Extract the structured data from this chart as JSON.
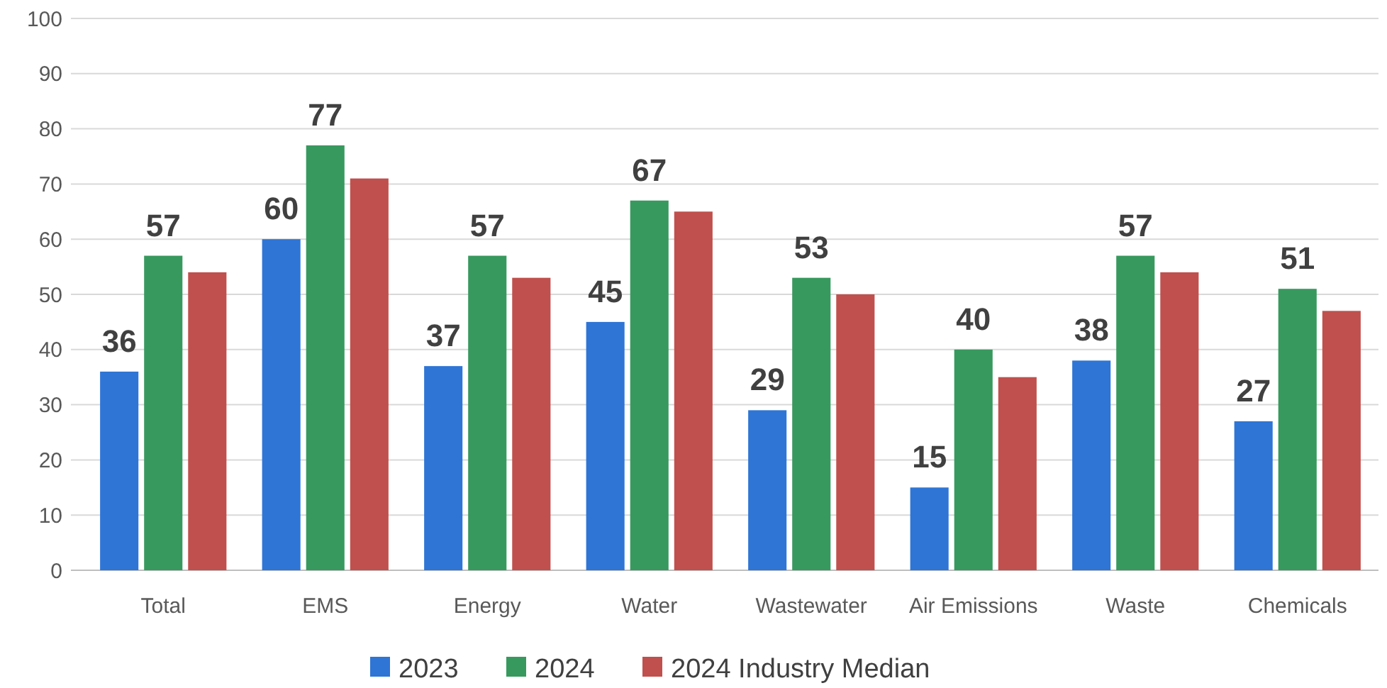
{
  "chart_data": {
    "type": "bar",
    "categories": [
      "Total",
      "EMS",
      "Energy",
      "Water",
      "Wastewater",
      "Air Emissions",
      "Waste",
      "Chemicals"
    ],
    "series": [
      {
        "name": "2023",
        "color": "#2e75d6",
        "values": [
          36,
          60,
          37,
          45,
          29,
          15,
          38,
          27
        ],
        "value_labels": [
          "36",
          "60",
          "37",
          "45",
          "29",
          "15",
          "38",
          "27"
        ]
      },
      {
        "name": "2024",
        "color": "#37995e",
        "values": [
          57,
          77,
          57,
          67,
          53,
          40,
          57,
          51
        ],
        "value_labels": [
          "57",
          "77",
          "57",
          "67",
          "53",
          "40",
          "57",
          "51"
        ]
      },
      {
        "name": "2024 Industry Median",
        "color": "#c0504d",
        "values": [
          54,
          71,
          53,
          65,
          50,
          35,
          54,
          47
        ]
      }
    ],
    "ylim": [
      0,
      100
    ],
    "yticks": [
      0,
      10,
      20,
      30,
      40,
      50,
      60,
      70,
      80,
      90,
      100
    ],
    "grid": "y",
    "legend": "bottom"
  }
}
